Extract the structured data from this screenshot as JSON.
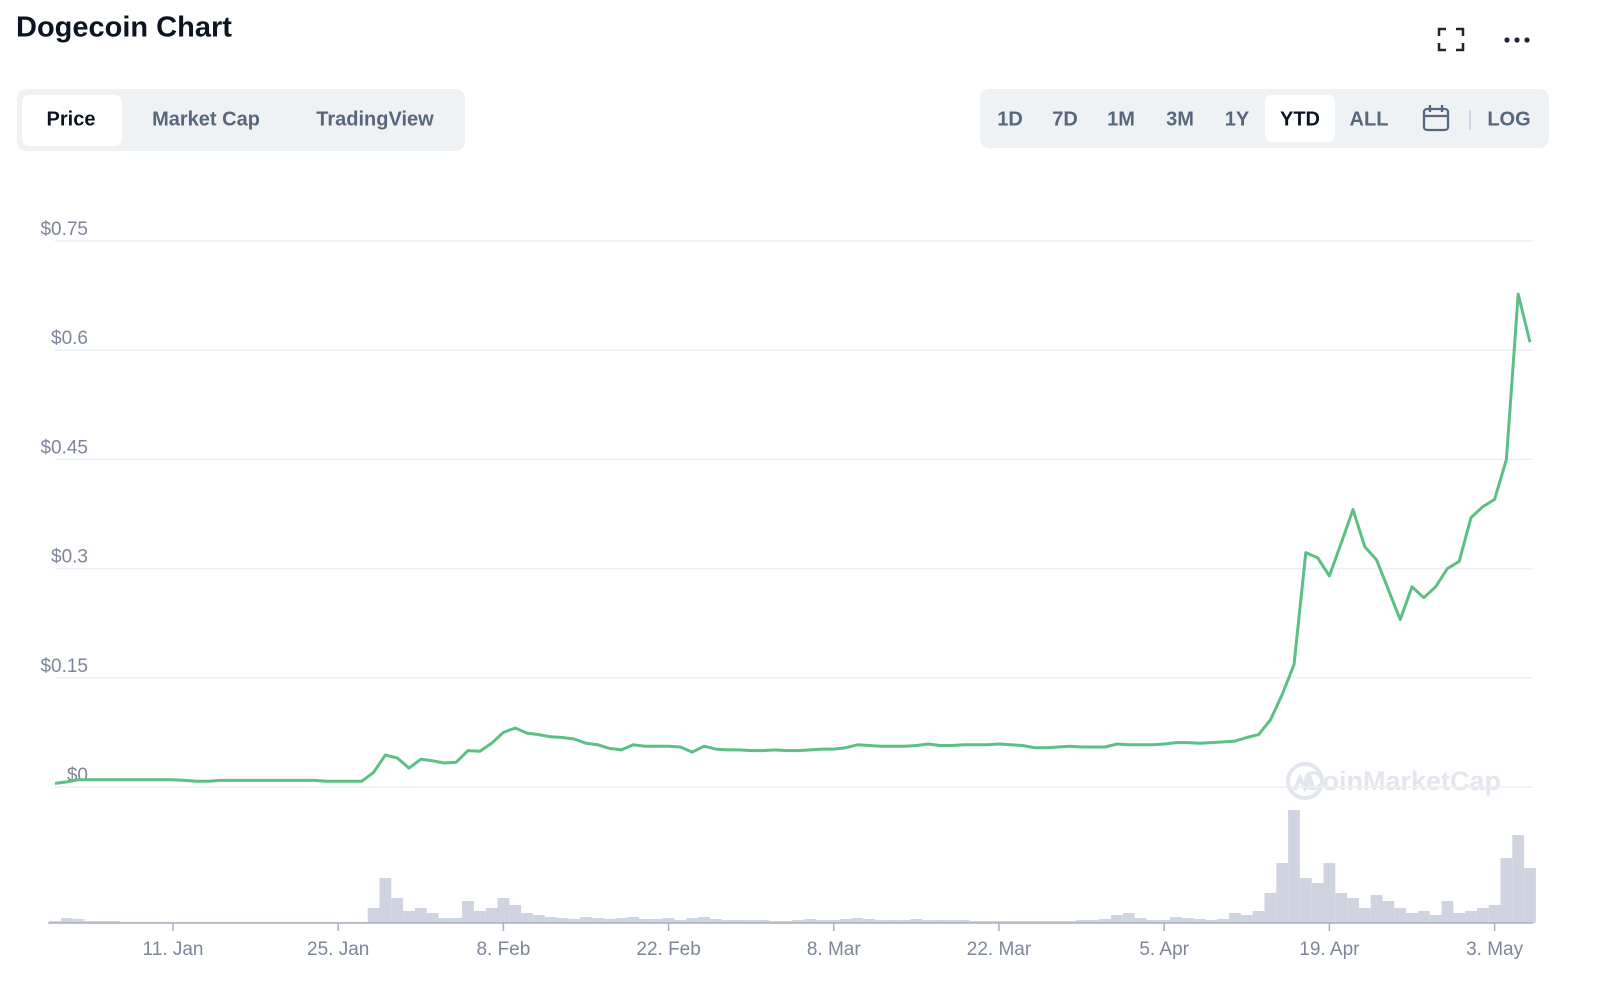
{
  "chart_data": {
    "type": "line",
    "title": "Dogecoin Chart",
    "categories": [
      "1. Jan",
      "2. Jan",
      "3. Jan",
      "4. Jan",
      "5. Jan",
      "6. Jan",
      "7. Jan",
      "8. Jan",
      "9. Jan",
      "10. Jan",
      "11. Jan",
      "12. Jan",
      "13. Jan",
      "14. Jan",
      "15. Jan",
      "16. Jan",
      "17. Jan",
      "18. Jan",
      "19. Jan",
      "20. Jan",
      "21. Jan",
      "22. Jan",
      "23. Jan",
      "24. Jan",
      "25. Jan",
      "26. Jan",
      "27. Jan",
      "28. Jan",
      "29. Jan",
      "30. Jan",
      "31. Jan",
      "1. Feb",
      "2. Feb",
      "3. Feb",
      "4. Feb",
      "5. Feb",
      "6. Feb",
      "7. Feb",
      "8. Feb",
      "9. Feb",
      "10. Feb",
      "11. Feb",
      "12. Feb",
      "13. Feb",
      "14. Feb",
      "15. Feb",
      "16. Feb",
      "17. Feb",
      "18. Feb",
      "19. Feb",
      "20. Feb",
      "21. Feb",
      "22. Feb",
      "23. Feb",
      "24. Feb",
      "25. Feb",
      "26. Feb",
      "27. Feb",
      "28. Feb",
      "1. Mar",
      "2. Mar",
      "3. Mar",
      "4. Mar",
      "5. Mar",
      "6. Mar",
      "7. Mar",
      "8. Mar",
      "9. Mar",
      "10. Mar",
      "11. Mar",
      "12. Mar",
      "13. Mar",
      "14. Mar",
      "15. Mar",
      "16. Mar",
      "17. Mar",
      "18. Mar",
      "19. Mar",
      "20. Mar",
      "21. Mar",
      "22. Mar",
      "23. Mar",
      "24. Mar",
      "25. Mar",
      "26. Mar",
      "27. Mar",
      "28. Mar",
      "29. Mar",
      "30. Mar",
      "31. Mar",
      "1. Apr",
      "2. Apr",
      "3. Apr",
      "4. Apr",
      "5. Apr",
      "6. Apr",
      "7. Apr",
      "8. Apr",
      "9. Apr",
      "10. Apr",
      "11. Apr",
      "12. Apr",
      "13. Apr",
      "14. Apr",
      "15. Apr",
      "16. Apr",
      "17. Apr",
      "18. Apr",
      "19. Apr",
      "20. Apr",
      "21. Apr",
      "22. Apr",
      "23. Apr",
      "24. Apr",
      "25. Apr",
      "26. Apr",
      "27. Apr",
      "28. Apr",
      "29. Apr",
      "30. Apr",
      "1. May",
      "2. May",
      "3. May",
      "4. May",
      "5. May",
      "6. May"
    ],
    "series": [
      {
        "color": "#5ebf84",
        "values": [
          0.005,
          0.007,
          0.01,
          0.01,
          0.01,
          0.01,
          0.01,
          0.01,
          0.01,
          0.01,
          0.01,
          0.009,
          0.008,
          0.008,
          0.009,
          0.009,
          0.009,
          0.009,
          0.009,
          0.009,
          0.009,
          0.009,
          0.009,
          0.008,
          0.008,
          0.008,
          0.008,
          0.02,
          0.044,
          0.04,
          0.026,
          0.038,
          0.036,
          0.033,
          0.034,
          0.05,
          0.049,
          0.06,
          0.075,
          0.081,
          0.074,
          0.072,
          0.069,
          0.068,
          0.066,
          0.06,
          0.058,
          0.053,
          0.051,
          0.058,
          0.056,
          0.056,
          0.056,
          0.055,
          0.048,
          0.056,
          0.052,
          0.051,
          0.051,
          0.05,
          0.05,
          0.051,
          0.05,
          0.05,
          0.051,
          0.052,
          0.052,
          0.054,
          0.058,
          0.057,
          0.056,
          0.056,
          0.056,
          0.057,
          0.059,
          0.057,
          0.057,
          0.058,
          0.058,
          0.058,
          0.059,
          0.058,
          0.057,
          0.054,
          0.054,
          0.055,
          0.056,
          0.055,
          0.055,
          0.055,
          0.059,
          0.058,
          0.058,
          0.058,
          0.059,
          0.061,
          0.061,
          0.06,
          0.061,
          0.062,
          0.063,
          0.068,
          0.072,
          0.092,
          0.127,
          0.168,
          0.322,
          0.315,
          0.29,
          0.335,
          0.381,
          0.33,
          0.312,
          0.271,
          0.23,
          0.275,
          0.26,
          0.275,
          0.3,
          0.31,
          0.37,
          0.385,
          0.395,
          0.45,
          0.677,
          0.611
        ]
      },
      {
        "type": "bar",
        "color": "#d0d4e1",
        "values": [
          2,
          5,
          4,
          2,
          2,
          2,
          1,
          1,
          1,
          1,
          1,
          1,
          1,
          1,
          1,
          1,
          1,
          1,
          1,
          1,
          1,
          1,
          1,
          1,
          1,
          1,
          1,
          15,
          45,
          25,
          12,
          15,
          10,
          5,
          5,
          22,
          12,
          15,
          25,
          18,
          10,
          8,
          6,
          5,
          4,
          6,
          5,
          4,
          5,
          6,
          4,
          4,
          5,
          3,
          5,
          6,
          4,
          3,
          3,
          3,
          3,
          2,
          2,
          3,
          4,
          3,
          3,
          4,
          5,
          4,
          3,
          3,
          3,
          4,
          3,
          3,
          3,
          3,
          2,
          2,
          2,
          2,
          2,
          2,
          2,
          2,
          2,
          3,
          3,
          4,
          8,
          10,
          5,
          3,
          3,
          6,
          5,
          4,
          3,
          4,
          10,
          8,
          12,
          30,
          60,
          113,
          45,
          40,
          60,
          30,
          25,
          15,
          28,
          22,
          15,
          10,
          12,
          8,
          22,
          10,
          12,
          15,
          18,
          65,
          88,
          55
        ]
      }
    ],
    "ylim": [
      0,
      0.75
    ],
    "yticks": [
      {
        "value": 0,
        "label": "$0"
      },
      {
        "value": 0.15,
        "label": "$0.15"
      },
      {
        "value": 0.3,
        "label": "$0.3"
      },
      {
        "value": 0.45,
        "label": "$0.45"
      },
      {
        "value": 0.6,
        "label": "$0.6"
      },
      {
        "value": 0.75,
        "label": "$0.75"
      }
    ],
    "xticks": [
      "11. Jan",
      "25. Jan",
      "8. Feb",
      "22. Feb",
      "8. Mar",
      "22. Mar",
      "5. Apr",
      "19. Apr",
      "3. May"
    ],
    "grid": true,
    "log_scale": false
  },
  "tabs": {
    "items": [
      "Price",
      "Market Cap",
      "TradingView"
    ],
    "selected": 0
  },
  "ranges": {
    "items": [
      "1D",
      "7D",
      "1M",
      "3M",
      "1Y",
      "YTD",
      "ALL"
    ],
    "selected": 5
  },
  "log_button": "LOG",
  "watermark": "CoinMarketCap"
}
